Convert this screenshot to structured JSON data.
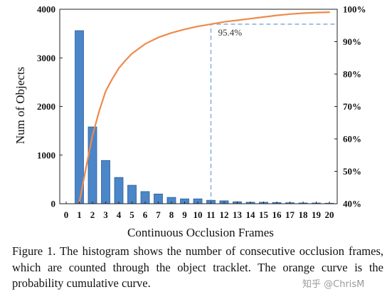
{
  "chart_data": {
    "type": "bar",
    "xlabel": "Continuous Occlusion Frames",
    "ylabel": "Num of Objects",
    "categories": [
      "0",
      "1",
      "2",
      "3",
      "4",
      "5",
      "6",
      "7",
      "8",
      "9",
      "10",
      "11",
      "12",
      "13",
      "14",
      "15",
      "16",
      "17",
      "18",
      "19",
      "20"
    ],
    "ylim": [
      0,
      4000
    ],
    "yticks": [
      "0",
      "1000",
      "2000",
      "3000",
      "4000"
    ],
    "y2lim": [
      40,
      100
    ],
    "y2ticks": [
      "40%",
      "50%",
      "60%",
      "70%",
      "80%",
      "90%",
      "100%"
    ],
    "series": [
      {
        "kind": "bar",
        "color": "#4a86c8",
        "values": [
          0,
          3560,
          1580,
          890,
          540,
          380,
          250,
          200,
          130,
          100,
          100,
          70,
          60,
          40,
          30,
          30,
          25,
          20,
          15,
          15,
          10
        ]
      },
      {
        "kind": "line",
        "axis": "right",
        "color": "#ef8a4b",
        "x": [
          1,
          1.5,
          2,
          2.5,
          3,
          3.5,
          4,
          4.5,
          5,
          6,
          7,
          8,
          9,
          10,
          11,
          12,
          13,
          14,
          15,
          16,
          17,
          18,
          19,
          20
        ],
        "values": [
          40.4,
          51,
          61,
          68.5,
          74.7,
          78.5,
          81.8,
          84.2,
          86.3,
          89.3,
          91.3,
          92.7,
          93.8,
          94.7,
          95.4,
          96.1,
          96.6,
          97.1,
          97.6,
          98.1,
          98.5,
          98.8,
          99.0,
          99.1
        ]
      }
    ],
    "grid": false,
    "annotation": {
      "label": "95.4%",
      "x": 11,
      "y": 95.4,
      "style": "dashed-box",
      "color": "#8ab4df"
    }
  },
  "caption": "Figure 1. The histogram shows the number of consecutive occlusion frames, which are counted through the object tracklet.  The orange curve is the probability cumulative curve.",
  "watermark": "知乎 @ChrisM"
}
